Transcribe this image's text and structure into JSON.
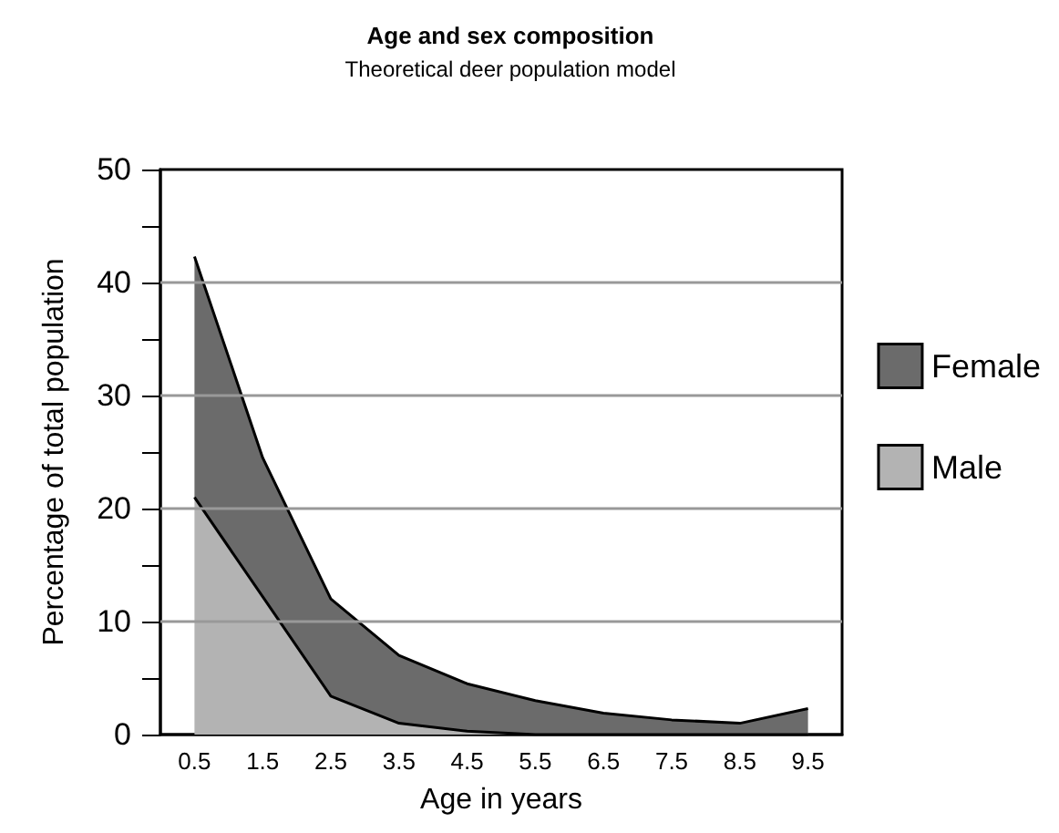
{
  "chart_data": {
    "type": "area",
    "title": "Age and sex composition",
    "subtitle": "Theoretical deer population model",
    "xlabel": "Age in years",
    "ylabel": "Percentage of total population",
    "categories": [
      "0.5",
      "1.5",
      "2.5",
      "3.5",
      "4.5",
      "5.5",
      "6.5",
      "7.5",
      "8.5",
      "9.5"
    ],
    "ylim": [
      0,
      50
    ],
    "yticks": [
      0,
      {
        "value": 5,
        "label": null
      },
      10,
      {
        "value": 15,
        "label": null
      },
      20,
      {
        "value": 25,
        "label": null
      },
      30,
      {
        "value": 35,
        "label": null
      },
      40,
      {
        "value": 45,
        "label": null
      },
      50
    ],
    "stacked": true,
    "grid": "y",
    "legend": "right",
    "marker": "none",
    "series": [
      {
        "name": "Male",
        "color": "#b3b3b3",
        "values": [
          21.0,
          12.2,
          3.4,
          1.0,
          0.3,
          0,
          0,
          0,
          0,
          0
        ]
      },
      {
        "name": "Female",
        "color": "#6b6b6b",
        "values": [
          21.3,
          12.3,
          8.6,
          6.0,
          4.2,
          3.0,
          1.9,
          1.3,
          1.0,
          2.3
        ]
      }
    ]
  }
}
